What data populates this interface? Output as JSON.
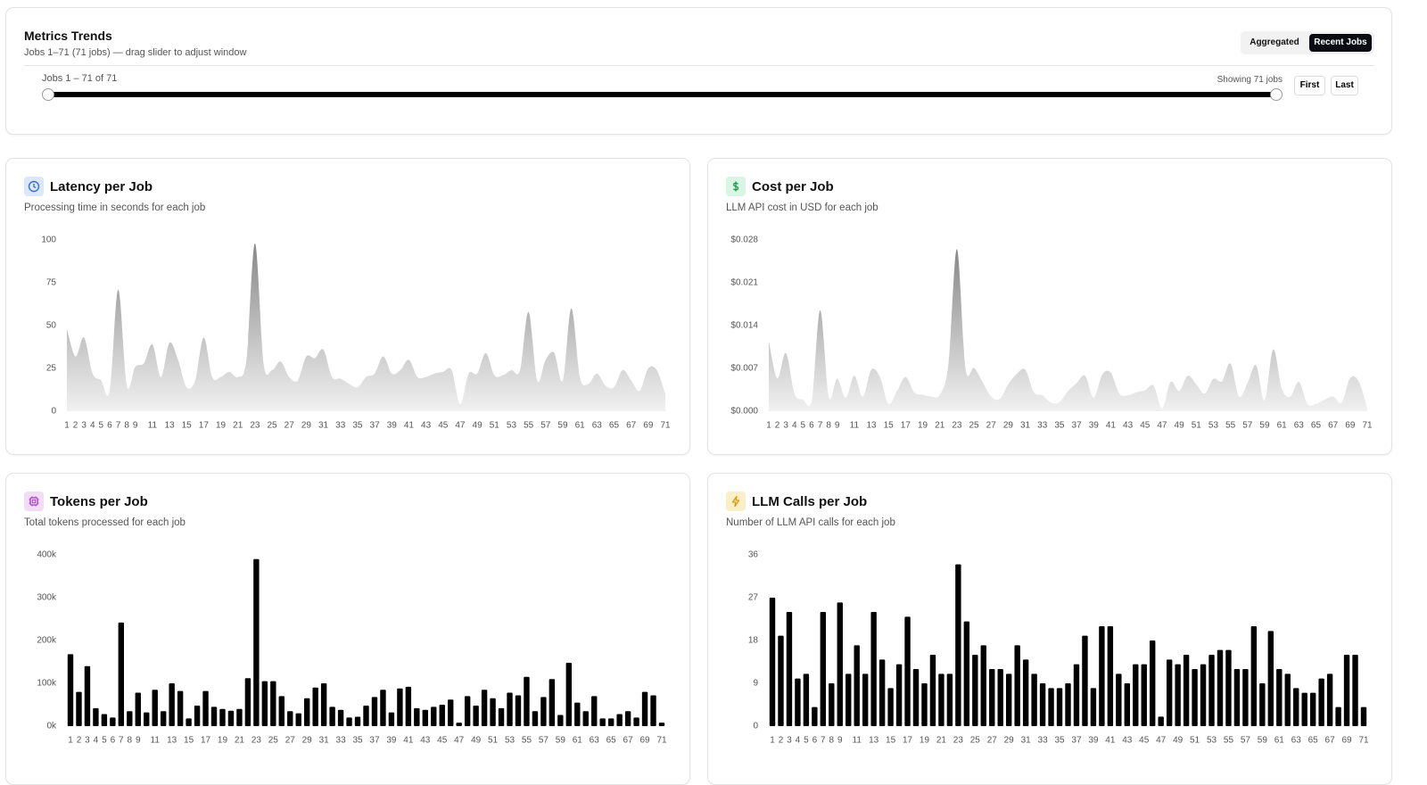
{
  "header": {
    "title": "Metrics Trends",
    "subtitle": "Jobs 1–71 (71 jobs) — drag slider to adjust window",
    "toggle": [
      "Aggregated",
      "Recent Jobs"
    ],
    "slider_label": "Jobs 1 – 71 of 71",
    "showing": "Showing 71 jobs",
    "buttons": [
      "First",
      "Last"
    ]
  },
  "chart_data": [
    {
      "type": "area",
      "title": "Latency per Job",
      "subtitle": "Processing time in seconds for each job",
      "color": "#888888",
      "categories": [
        1,
        2,
        3,
        4,
        5,
        6,
        7,
        8,
        9,
        null,
        11,
        null,
        13,
        null,
        15,
        null,
        17,
        null,
        19,
        null,
        21,
        null,
        23,
        null,
        25,
        null,
        27,
        null,
        29,
        null,
        31,
        null,
        33,
        null,
        35,
        null,
        37,
        null,
        39,
        null,
        41,
        null,
        43,
        null,
        45,
        null,
        47,
        null,
        49,
        null,
        51,
        null,
        53,
        null,
        55,
        null,
        57,
        null,
        59,
        null,
        61,
        null,
        63,
        null,
        65,
        null,
        67,
        null,
        69,
        null,
        71
      ],
      "values": [
        48,
        32,
        43,
        22,
        18,
        12,
        71,
        15,
        26,
        28,
        39,
        20,
        40,
        30,
        14,
        18,
        43,
        20,
        20,
        23,
        20,
        30,
        98,
        28,
        24,
        29,
        20,
        18,
        32,
        31,
        36,
        20,
        19,
        16,
        14,
        20,
        22,
        32,
        22,
        24,
        30,
        20,
        20,
        22,
        23,
        24,
        4,
        22,
        22,
        34,
        21,
        21,
        24,
        24,
        58,
        18,
        30,
        34,
        18,
        60,
        20,
        16,
        22,
        15,
        14,
        24,
        18,
        12,
        25,
        24,
        10
      ],
      "ylim": [
        0,
        100
      ],
      "yticks": [
        0,
        25,
        50,
        75,
        100
      ]
    },
    {
      "type": "area",
      "title": "Cost per Job",
      "subtitle": "LLM API cost in USD for each job",
      "color": "#888888",
      "categories": [
        1,
        2,
        3,
        4,
        5,
        6,
        7,
        8,
        9,
        null,
        11,
        null,
        13,
        null,
        15,
        null,
        17,
        null,
        19,
        null,
        21,
        null,
        23,
        null,
        25,
        null,
        27,
        null,
        29,
        null,
        31,
        null,
        33,
        null,
        35,
        null,
        37,
        null,
        39,
        null,
        41,
        null,
        43,
        null,
        45,
        null,
        47,
        null,
        49,
        null,
        51,
        null,
        53,
        null,
        55,
        null,
        57,
        null,
        59,
        null,
        61,
        null,
        63,
        null,
        65,
        null,
        67,
        null,
        69,
        null,
        71
      ],
      "values": [
        0.0114,
        0.0054,
        0.0095,
        0.0029,
        0.0019,
        0.0014,
        0.0165,
        0.0024,
        0.0053,
        0.0022,
        0.0058,
        0.0024,
        0.0068,
        0.0056,
        0.0012,
        0.0033,
        0.0056,
        0.0031,
        0.0027,
        0.0024,
        0.0027,
        0.0076,
        0.0265,
        0.0071,
        0.0071,
        0.0048,
        0.0024,
        0.002,
        0.0044,
        0.0061,
        0.0068,
        0.0031,
        0.0026,
        0.0014,
        0.0015,
        0.0033,
        0.0046,
        0.0058,
        0.0022,
        0.006,
        0.0063,
        0.0029,
        0.0026,
        0.0031,
        0.0034,
        0.0042,
        0.0005,
        0.0048,
        0.0033,
        0.0058,
        0.0044,
        0.0029,
        0.0053,
        0.0049,
        0.0078,
        0.0024,
        0.0046,
        0.0075,
        0.0018,
        0.0101,
        0.0037,
        0.0024,
        0.0048,
        0.0012,
        0.0012,
        0.0019,
        0.0024,
        0.0014,
        0.0054,
        0.0049,
        0.0005
      ],
      "ylim": [
        0,
        0.028
      ],
      "yticks": [
        {
          "value": 0,
          "label": "$0.000"
        },
        {
          "value": 0.007,
          "label": "$0.007"
        },
        {
          "value": 0.014,
          "label": "$0.014"
        },
        {
          "value": 0.021,
          "label": "$0.021"
        },
        {
          "value": 0.028,
          "label": "$0.028"
        }
      ]
    },
    {
      "type": "bar",
      "title": "Tokens per Job",
      "subtitle": "Total tokens processed for each job",
      "color": "#000000",
      "categories": [
        1,
        2,
        3,
        4,
        5,
        6,
        7,
        8,
        9,
        null,
        11,
        null,
        13,
        null,
        15,
        null,
        17,
        null,
        19,
        null,
        21,
        null,
        23,
        null,
        25,
        null,
        27,
        null,
        29,
        null,
        31,
        null,
        33,
        null,
        35,
        null,
        37,
        null,
        39,
        null,
        41,
        null,
        43,
        null,
        45,
        null,
        47,
        null,
        49,
        null,
        51,
        null,
        53,
        null,
        55,
        null,
        57,
        null,
        59,
        null,
        61,
        null,
        63,
        null,
        65,
        null,
        67,
        null,
        69,
        null,
        71
      ],
      "values": [
        168000,
        80000,
        140000,
        42000,
        28000,
        20000,
        242000,
        35000,
        78000,
        32000,
        85000,
        35000,
        100000,
        82000,
        18000,
        48000,
        82000,
        45000,
        40000,
        36000,
        40000,
        112000,
        390000,
        105000,
        105000,
        70000,
        35000,
        30000,
        65000,
        90000,
        100000,
        45000,
        38000,
        20000,
        22000,
        48000,
        68000,
        85000,
        32000,
        88000,
        92000,
        42000,
        38000,
        45000,
        50000,
        62000,
        8000,
        70000,
        48000,
        85000,
        65000,
        42000,
        78000,
        72000,
        115000,
        35000,
        68000,
        110000,
        26000,
        148000,
        55000,
        35000,
        70000,
        18000,
        18000,
        28000,
        35000,
        20000,
        80000,
        72000,
        8000
      ],
      "ylim": [
        0,
        400000
      ],
      "yticks": [
        {
          "value": 0,
          "label": "0k"
        },
        {
          "value": 100000,
          "label": "100k"
        },
        {
          "value": 200000,
          "label": "200k"
        },
        {
          "value": 300000,
          "label": "300k"
        },
        {
          "value": 400000,
          "label": "400k"
        }
      ]
    },
    {
      "type": "bar",
      "title": "LLM Calls per Job",
      "subtitle": "Number of LLM API calls for each job",
      "color": "#000000",
      "categories": [
        1,
        2,
        3,
        4,
        5,
        6,
        7,
        8,
        9,
        null,
        11,
        null,
        13,
        null,
        15,
        null,
        17,
        null,
        19,
        null,
        21,
        null,
        23,
        null,
        25,
        null,
        27,
        null,
        29,
        null,
        31,
        null,
        33,
        null,
        35,
        null,
        37,
        null,
        39,
        null,
        41,
        null,
        43,
        null,
        45,
        null,
        47,
        null,
        49,
        null,
        51,
        null,
        53,
        null,
        55,
        null,
        57,
        null,
        59,
        null,
        61,
        null,
        63,
        null,
        65,
        null,
        67,
        null,
        69,
        null,
        71
      ],
      "values": [
        27,
        19,
        24,
        10,
        11,
        4,
        24,
        9,
        26,
        11,
        17,
        11,
        24,
        14,
        8,
        13,
        23,
        12,
        9,
        15,
        11,
        11,
        34,
        22,
        15,
        17,
        12,
        12,
        11,
        17,
        14,
        11,
        9,
        8,
        8,
        9,
        13,
        19,
        8,
        21,
        21,
        11,
        9,
        13,
        13,
        18,
        2,
        14,
        13,
        15,
        12,
        13,
        15,
        16,
        16,
        12,
        12,
        21,
        9,
        20,
        12,
        11,
        8,
        7,
        7,
        10,
        11,
        4,
        15,
        15,
        4
      ],
      "ylim": [
        0,
        36
      ],
      "yticks": [
        0,
        9,
        18,
        27,
        36
      ]
    }
  ]
}
